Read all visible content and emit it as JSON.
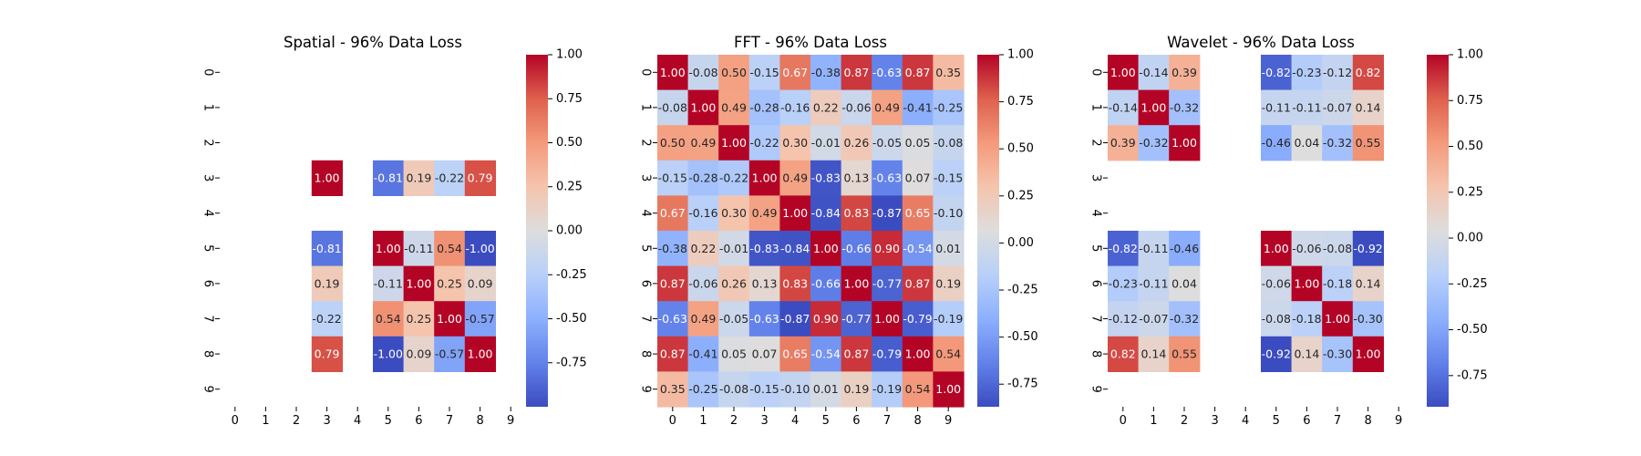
{
  "figure": {
    "background": "#ffffff"
  },
  "chart_data": [
    {
      "type": "heatmap",
      "title": "Spatial - 96% Data Loss",
      "x_ticks": [
        "0",
        "1",
        "2",
        "3",
        "4",
        "5",
        "6",
        "7",
        "8",
        "9"
      ],
      "y_ticks": [
        "0",
        "1",
        "2",
        "3",
        "4",
        "5",
        "6",
        "7",
        "8",
        "9"
      ],
      "colormap": "coolwarm",
      "vmin": -1.0,
      "vmax": 1.0,
      "colorbar_ticks": [
        "-0.75",
        "-0.50",
        "-0.25",
        "0.00",
        "0.25",
        "0.50",
        "0.75",
        "1.00"
      ],
      "matrix": [
        [
          null,
          null,
          null,
          null,
          null,
          null,
          null,
          null,
          null,
          null
        ],
        [
          null,
          null,
          null,
          null,
          null,
          null,
          null,
          null,
          null,
          null
        ],
        [
          null,
          null,
          null,
          null,
          null,
          null,
          null,
          null,
          null,
          null
        ],
        [
          null,
          null,
          null,
          1.0,
          null,
          -0.81,
          0.19,
          -0.22,
          0.79,
          null
        ],
        [
          null,
          null,
          null,
          null,
          null,
          null,
          null,
          null,
          null,
          null
        ],
        [
          null,
          null,
          null,
          -0.81,
          null,
          1.0,
          -0.11,
          0.54,
          -1.0,
          null
        ],
        [
          null,
          null,
          null,
          0.19,
          null,
          -0.11,
          1.0,
          0.25,
          0.09,
          null
        ],
        [
          null,
          null,
          null,
          -0.22,
          null,
          0.54,
          0.25,
          1.0,
          -0.57,
          null
        ],
        [
          null,
          null,
          null,
          0.79,
          null,
          -1.0,
          0.09,
          -0.57,
          1.0,
          null
        ],
        [
          null,
          null,
          null,
          null,
          null,
          null,
          null,
          null,
          null,
          null
        ]
      ]
    },
    {
      "type": "heatmap",
      "title": "FFT - 96% Data Loss",
      "x_ticks": [
        "0",
        "1",
        "2",
        "3",
        "4",
        "5",
        "6",
        "7",
        "8",
        "9"
      ],
      "y_ticks": [
        "0",
        "1",
        "2",
        "3",
        "4",
        "5",
        "6",
        "7",
        "8",
        "9"
      ],
      "colormap": "coolwarm",
      "vmin": -0.87,
      "vmax": 1.0,
      "colorbar_ticks": [
        "-0.75",
        "-0.50",
        "-0.25",
        "0.00",
        "0.25",
        "0.50",
        "0.75",
        "1.00"
      ],
      "matrix": [
        [
          1.0,
          -0.08,
          0.5,
          -0.15,
          0.67,
          -0.38,
          0.87,
          -0.63,
          0.87,
          0.35
        ],
        [
          -0.08,
          1.0,
          0.49,
          -0.28,
          -0.16,
          0.22,
          -0.06,
          0.49,
          -0.41,
          -0.25
        ],
        [
          0.5,
          0.49,
          1.0,
          -0.22,
          0.3,
          -0.01,
          0.26,
          -0.05,
          0.05,
          -0.08
        ],
        [
          -0.15,
          -0.28,
          -0.22,
          1.0,
          0.49,
          -0.83,
          0.13,
          -0.63,
          0.07,
          -0.15
        ],
        [
          0.67,
          -0.16,
          0.3,
          0.49,
          1.0,
          -0.84,
          0.83,
          -0.87,
          0.65,
          -0.1
        ],
        [
          -0.38,
          0.22,
          -0.01,
          -0.83,
          -0.84,
          1.0,
          -0.66,
          0.9,
          -0.54,
          0.01
        ],
        [
          0.87,
          -0.06,
          0.26,
          0.13,
          0.83,
          -0.66,
          1.0,
          -0.77,
          0.87,
          0.19
        ],
        [
          -0.63,
          0.49,
          -0.05,
          -0.63,
          -0.87,
          0.9,
          -0.77,
          1.0,
          -0.79,
          -0.19
        ],
        [
          0.87,
          -0.41,
          0.05,
          0.07,
          0.65,
          -0.54,
          0.87,
          -0.79,
          1.0,
          0.54
        ],
        [
          0.35,
          -0.25,
          -0.08,
          -0.15,
          -0.1,
          0.01,
          0.19,
          -0.19,
          0.54,
          1.0
        ]
      ]
    },
    {
      "type": "heatmap",
      "title": "Wavelet - 96% Data Loss",
      "x_ticks": [
        "0",
        "1",
        "2",
        "3",
        "4",
        "5",
        "6",
        "7",
        "8",
        "9"
      ],
      "y_ticks": [
        "0",
        "1",
        "2",
        "3",
        "4",
        "5",
        "6",
        "7",
        "8",
        "9"
      ],
      "colormap": "coolwarm",
      "vmin": -0.92,
      "vmax": 1.0,
      "colorbar_ticks": [
        "-0.75",
        "-0.50",
        "-0.25",
        "0.00",
        "0.25",
        "0.50",
        "0.75",
        "1.00"
      ],
      "matrix": [
        [
          1.0,
          -0.14,
          0.39,
          null,
          null,
          -0.82,
          -0.23,
          -0.12,
          0.82,
          null
        ],
        [
          -0.14,
          1.0,
          -0.32,
          null,
          null,
          -0.11,
          -0.11,
          -0.07,
          0.14,
          null
        ],
        [
          0.39,
          -0.32,
          1.0,
          null,
          null,
          -0.46,
          0.04,
          -0.32,
          0.55,
          null
        ],
        [
          null,
          null,
          null,
          null,
          null,
          null,
          null,
          null,
          null,
          null
        ],
        [
          null,
          null,
          null,
          null,
          null,
          null,
          null,
          null,
          null,
          null
        ],
        [
          -0.82,
          -0.11,
          -0.46,
          null,
          null,
          1.0,
          -0.06,
          -0.08,
          -0.92,
          null
        ],
        [
          -0.23,
          -0.11,
          0.04,
          null,
          null,
          -0.06,
          1.0,
          -0.18,
          0.14,
          null
        ],
        [
          -0.12,
          -0.07,
          -0.32,
          null,
          null,
          -0.08,
          -0.18,
          1.0,
          -0.3,
          null
        ],
        [
          0.82,
          0.14,
          0.55,
          null,
          null,
          -0.92,
          0.14,
          -0.3,
          1.0,
          null
        ],
        [
          null,
          null,
          null,
          null,
          null,
          null,
          null,
          null,
          null,
          null
        ]
      ]
    }
  ]
}
